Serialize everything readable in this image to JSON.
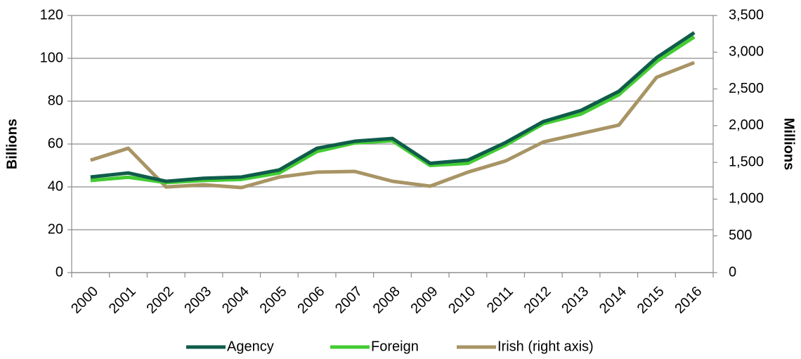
{
  "chart_data": {
    "type": "line",
    "y_label": "Billions",
    "y2_label": "Millions",
    "categories": [
      "2000",
      "2001",
      "2002",
      "2003",
      "2004",
      "2005",
      "2006",
      "2007",
      "2008",
      "2009",
      "2010",
      "2011",
      "2012",
      "2013",
      "2014",
      "2015",
      "2016"
    ],
    "series": [
      {
        "name": "Agency",
        "color": "#0f5c4b",
        "values": [
          44.6,
          46.5,
          42.6,
          44,
          44.6,
          47.9,
          58,
          61.3,
          62.6,
          51,
          52.5,
          60.7,
          70.5,
          75.7,
          84.6,
          100.3,
          112
        ]
      },
      {
        "name": "Foreign",
        "color": "#44cc33",
        "values": [
          43,
          44.5,
          42,
          43,
          43.5,
          46.5,
          56.5,
          60.5,
          61.5,
          50,
          51,
          59.5,
          69.5,
          74,
          83,
          98.5,
          110
        ]
      },
      {
        "name": "Irish (right axis)",
        "color": "#a89465",
        "axis": "y2",
        "values": [
          1530,
          1692,
          1166,
          1195,
          1157,
          1300,
          1367,
          1377,
          1243,
          1176,
          1367,
          1520,
          1778,
          1893,
          2008,
          2658,
          2859
        ]
      }
    ],
    "ylim": [
      0,
      120
    ],
    "yticks": [
      0,
      20,
      40,
      60,
      80,
      100,
      120
    ],
    "y2lim": [
      0,
      3500
    ],
    "y2ticks": [
      0,
      500,
      {
        "value": 1000,
        "label": "1,000"
      },
      {
        "value": 1500,
        "label": "1,500"
      },
      {
        "value": 2000,
        "label": "2,000"
      },
      {
        "value": 2500,
        "label": "2,500"
      },
      {
        "value": 3000,
        "label": "3,000"
      },
      {
        "value": 3500,
        "label": "3,500"
      }
    ],
    "grid": true,
    "legend": "bottom"
  }
}
